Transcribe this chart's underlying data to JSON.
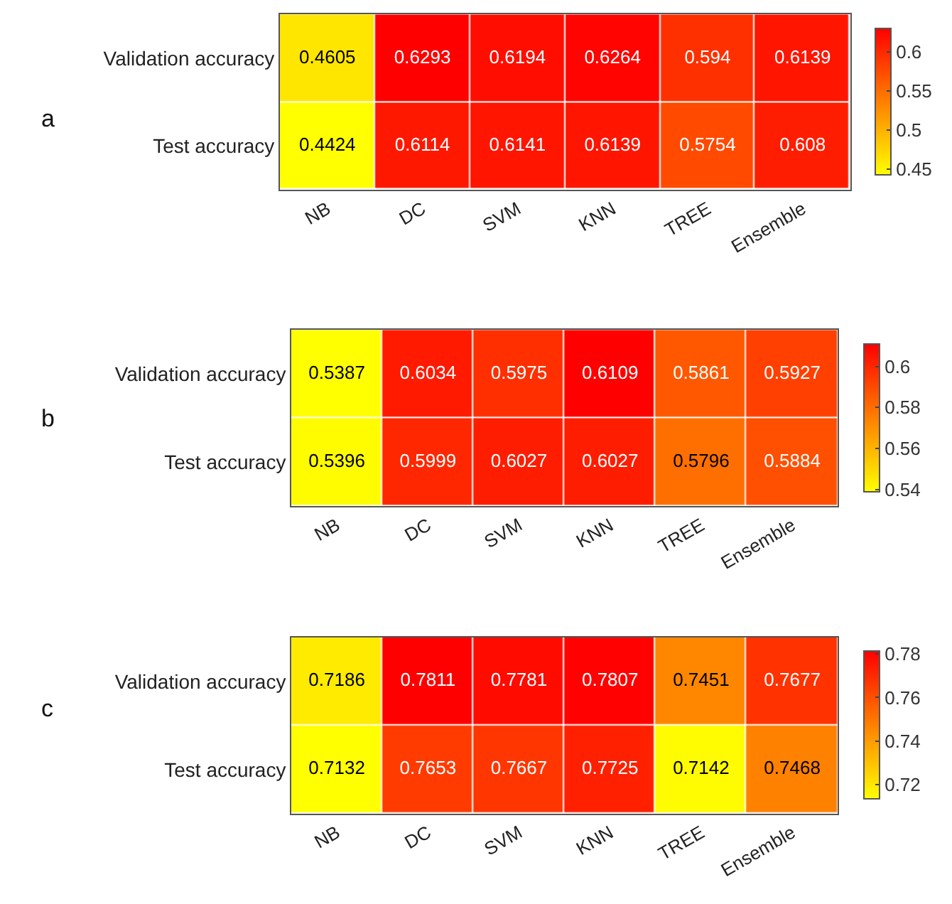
{
  "chart_data": [
    {
      "type": "heatmap",
      "annotations": [
        "a"
      ],
      "categories": [
        "NB",
        "DC",
        "SVM",
        "KNN",
        "TREE",
        "Ensemble"
      ],
      "y_categories": [
        "Validation accuracy",
        "Test accuracy"
      ],
      "cells": [
        [
          0.4605,
          0.6293,
          0.6194,
          0.6264,
          0.594,
          0.6139
        ],
        [
          0.4424,
          0.6114,
          0.6141,
          0.6139,
          0.5754,
          0.608
        ]
      ],
      "clim": [
        0.4424,
        0.6293
      ],
      "cticks": [
        0.45,
        0.5,
        0.55,
        0.6
      ],
      "data_labels": true
    },
    {
      "type": "heatmap",
      "annotations": [
        "b"
      ],
      "categories": [
        "NB",
        "DC",
        "SVM",
        "KNN",
        "TREE",
        "Ensemble"
      ],
      "y_categories": [
        "Validation accuracy",
        "Test accuracy"
      ],
      "cells": [
        [
          0.5387,
          0.6034,
          0.5975,
          0.6109,
          0.5861,
          0.5927
        ],
        [
          0.5396,
          0.5999,
          0.6027,
          0.6027,
          0.5796,
          0.5884
        ]
      ],
      "clim": [
        0.5387,
        0.6109
      ],
      "cticks": [
        0.54,
        0.56,
        0.58,
        0.6
      ],
      "data_labels": true
    },
    {
      "type": "heatmap",
      "annotations": [
        "c"
      ],
      "categories": [
        "NB",
        "DC",
        "SVM",
        "KNN",
        "TREE",
        "Ensemble"
      ],
      "y_categories": [
        "Validation accuracy",
        "Test accuracy"
      ],
      "cells": [
        [
          0.7186,
          0.7811,
          0.7781,
          0.7807,
          0.7451,
          0.7677
        ],
        [
          0.7132,
          0.7653,
          0.7667,
          0.7725,
          0.7142,
          0.7468
        ]
      ],
      "clim": [
        0.7132,
        0.7811
      ],
      "cticks": [
        0.72,
        0.74,
        0.76,
        0.78
      ],
      "data_labels": true
    }
  ]
}
